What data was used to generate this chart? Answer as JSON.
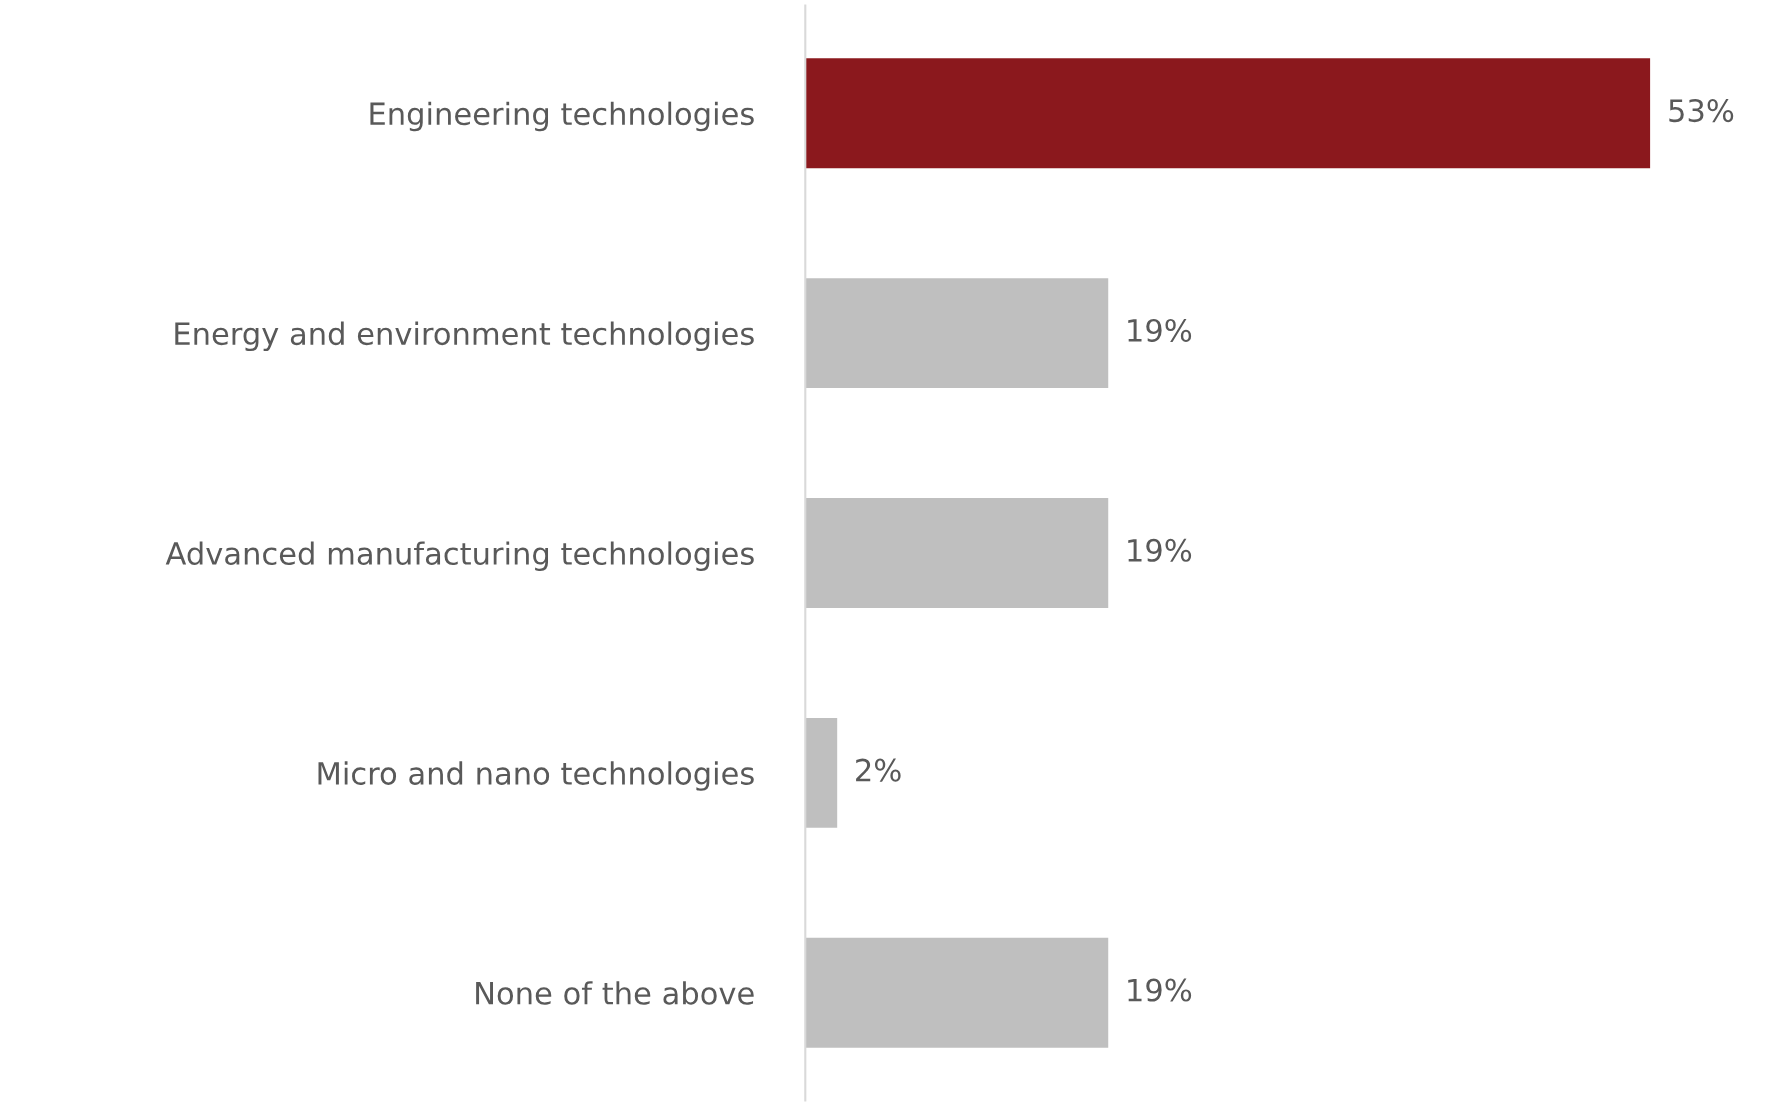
{
  "chart_data": {
    "type": "bar",
    "orientation": "horizontal",
    "categories": [
      "Engineering technologies",
      "Energy and environment technologies",
      "Advanced manufacturing technologies",
      "Micro and nano technologies",
      "None of the above"
    ],
    "values": [
      53,
      19,
      19,
      2,
      19
    ],
    "colors": [
      "#8b181d",
      "#bfbfbf",
      "#bfbfbf",
      "#bfbfbf",
      "#bfbfbf"
    ],
    "value_labels": [
      "53%",
      "19%",
      "19%",
      "2%",
      "19%"
    ],
    "grid": false,
    "legend": false,
    "tick_labels": "y"
  }
}
